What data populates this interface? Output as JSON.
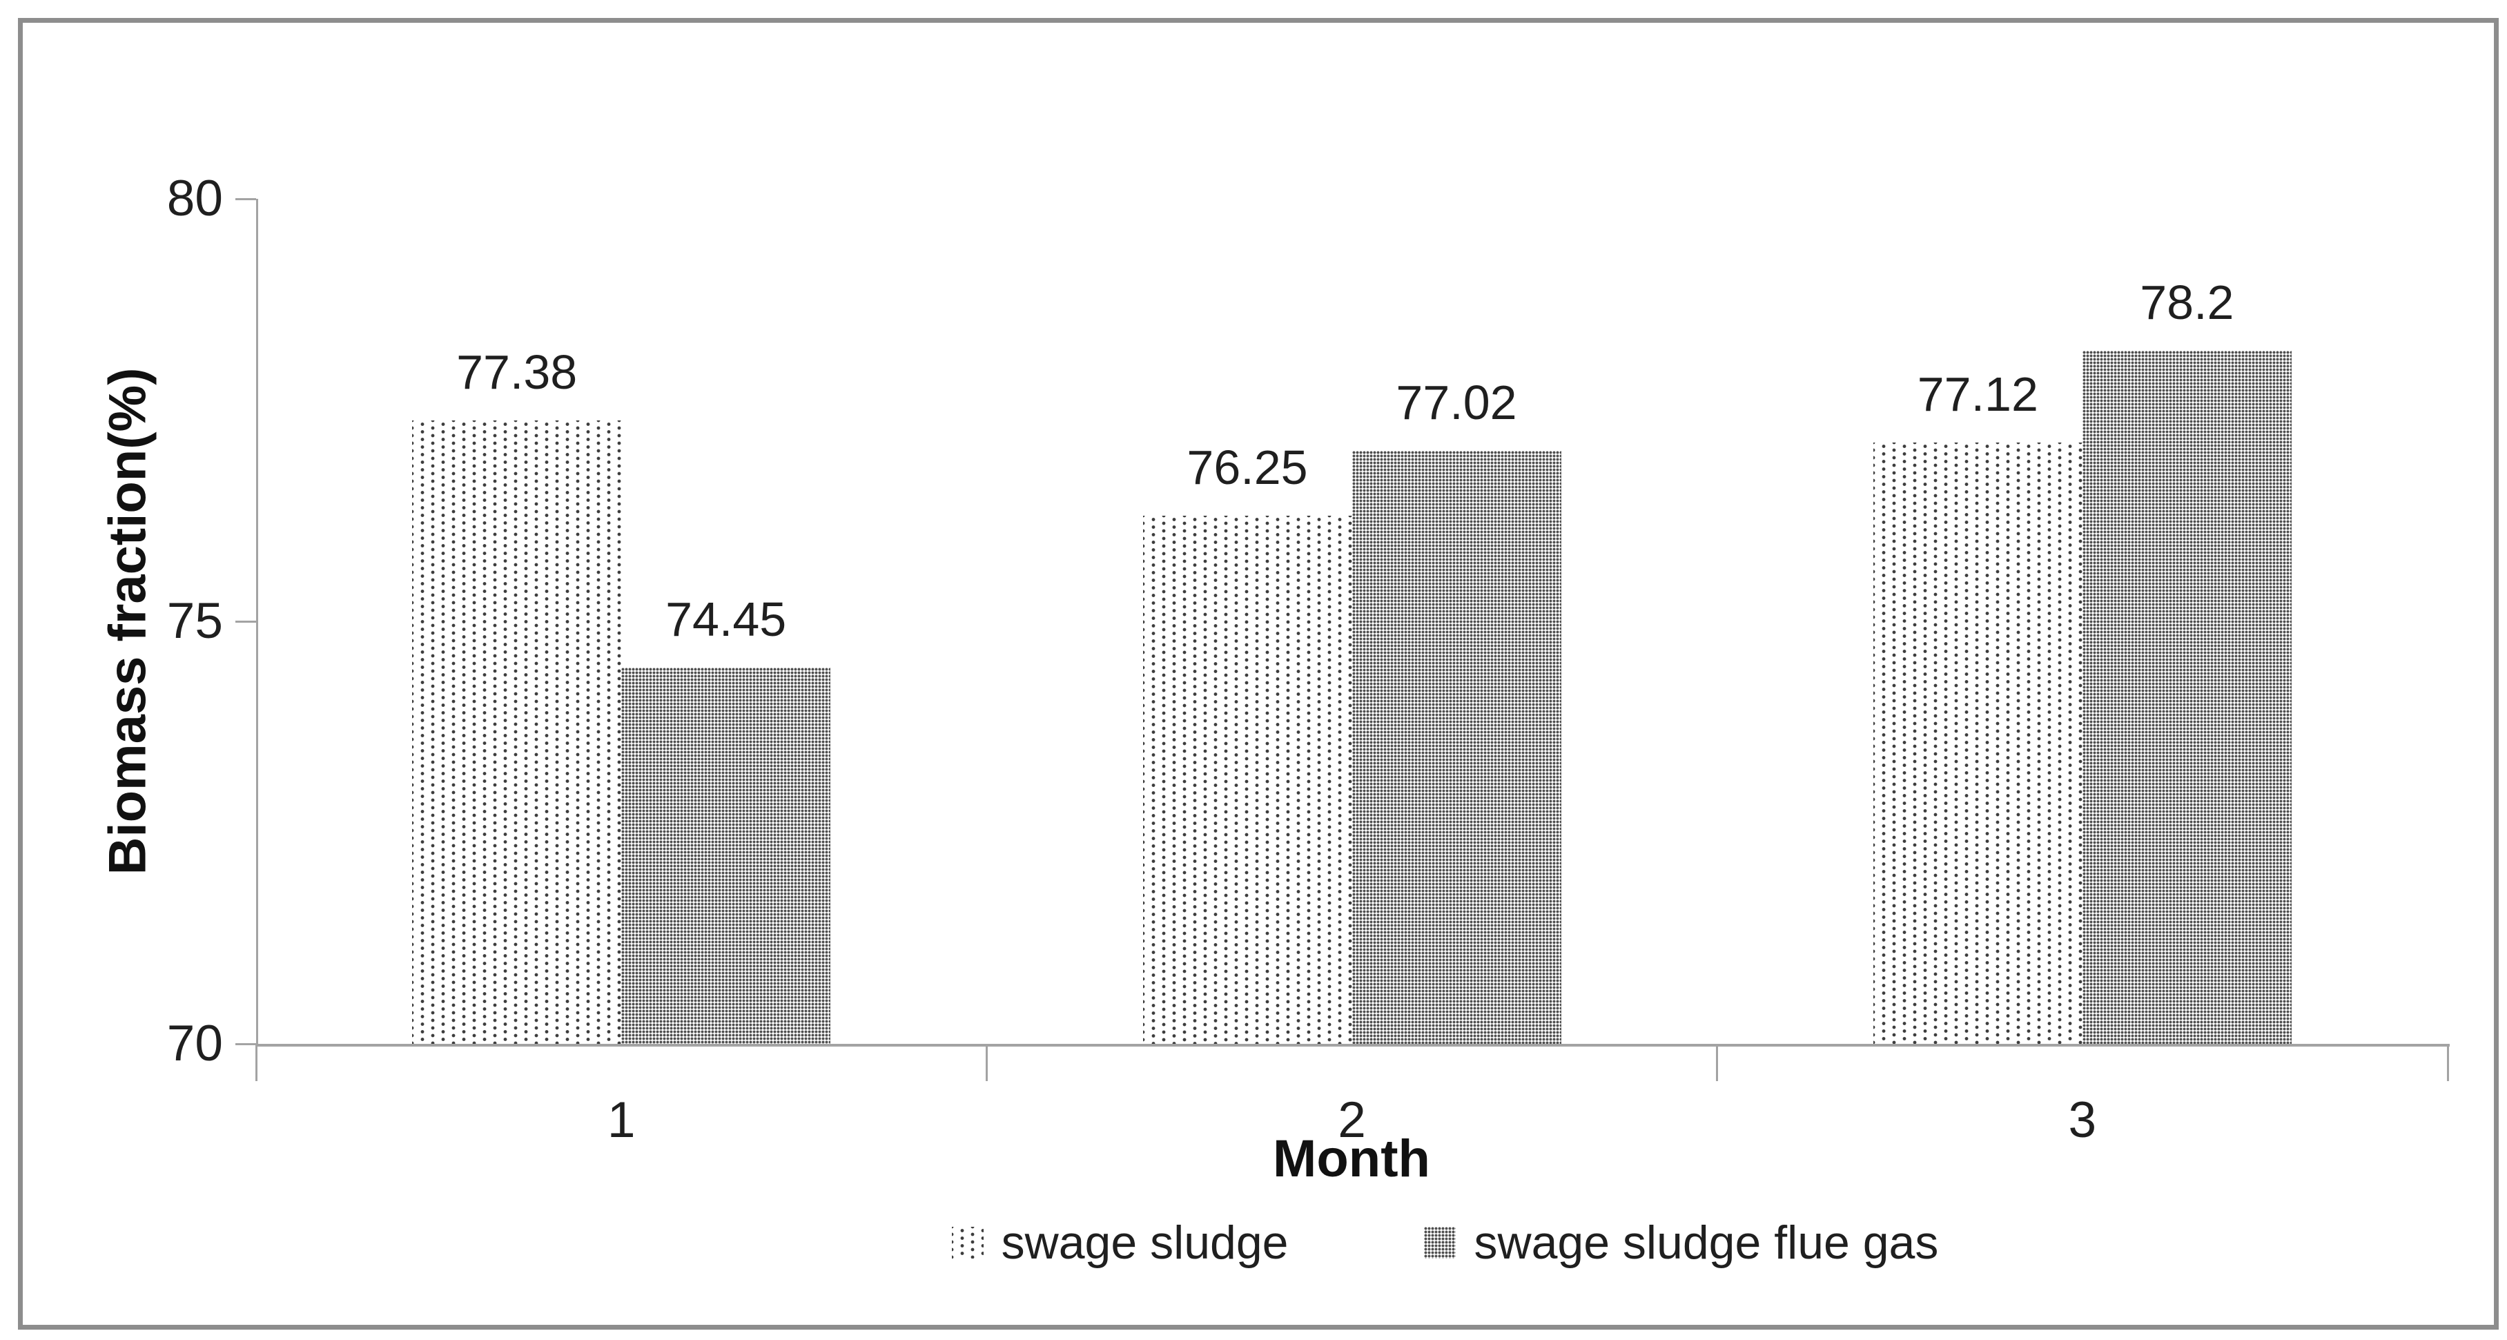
{
  "chart_data": {
    "type": "bar",
    "categories": [
      "1",
      "2",
      "3"
    ],
    "series": [
      {
        "name": "swage sludge",
        "values": [
          77.38,
          76.25,
          77.12
        ],
        "labels": [
          "77.38",
          "76.25",
          "77.12"
        ],
        "pattern": "sparse-dots"
      },
      {
        "name": "swage sludge flue gas",
        "values": [
          74.45,
          77.02,
          78.2
        ],
        "labels": [
          "74.45",
          "77.02",
          "78.2"
        ],
        "pattern": "dense-dots"
      }
    ],
    "title": "",
    "xlabel": "Month",
    "ylabel": "Biomass fraction(%)",
    "ylim": [
      70,
      80
    ],
    "yticks": [
      70,
      75,
      80
    ],
    "grid": false,
    "legend_position": "bottom",
    "colors": {
      "axis": "#a3a3a3",
      "frame_border": "#8d8d8d",
      "text": "#1f1f1f",
      "sparse_dot": "#3d3d3d",
      "dense_dot": "#4f4f4f",
      "bar_background": "#ffffff"
    }
  }
}
